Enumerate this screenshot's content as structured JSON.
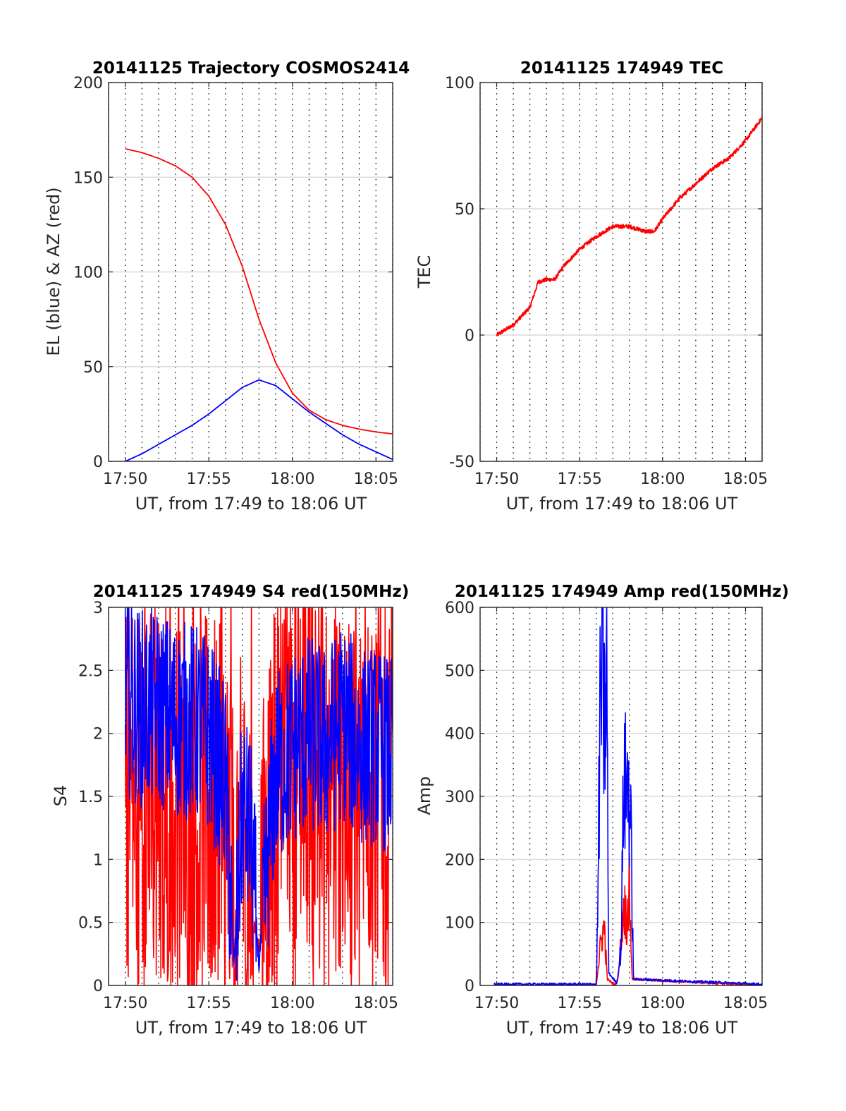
{
  "chart_data": [
    {
      "id": "trajectory",
      "type": "line",
      "title": "20141125 Trajectory COSMOS2414",
      "xlabel": "UT, from 17:49 to 18:06 UT",
      "ylabel": "EL (blue) & AZ (red)",
      "xlim": [
        "17:49",
        "18:06"
      ],
      "xticks": [
        "17:50",
        "17:55",
        "18:00",
        "18:05"
      ],
      "ylim": [
        0,
        200
      ],
      "yticks": [
        "0",
        "50",
        "100",
        "150",
        "200"
      ],
      "grid": true,
      "series": [
        {
          "color": "#ff0000",
          "x": [
            "17:50",
            "17:51",
            "17:52",
            "17:53",
            "17:54",
            "17:55",
            "17:56",
            "17:57",
            "17:58",
            "17:59",
            "18:00",
            "18:01",
            "18:02",
            "18:03",
            "18:04",
            "18:05",
            "18:06"
          ],
          "y": [
            165,
            163,
            160,
            156,
            150,
            140,
            125,
            103,
            75,
            52,
            36,
            27,
            22,
            19,
            17,
            15.5,
            14.5
          ]
        },
        {
          "color": "#0000ff",
          "x": [
            "17:50",
            "17:51",
            "17:52",
            "17:53",
            "17:54",
            "17:55",
            "17:56",
            "17:57",
            "17:58",
            "17:59",
            "18:00",
            "18:01",
            "18:02",
            "18:03",
            "18:04",
            "18:05",
            "18:06"
          ],
          "y": [
            0,
            4,
            9,
            14,
            19,
            25,
            32,
            39,
            43,
            40,
            33,
            26,
            20,
            14,
            9,
            5,
            1
          ]
        }
      ]
    },
    {
      "id": "tec",
      "type": "line",
      "title": "20141125 174949 TEC",
      "xlabel": "UT, from 17:49 to 18:06 UT",
      "ylabel": "TEC",
      "xlim": [
        "17:49",
        "18:06"
      ],
      "xticks": [
        "17:50",
        "17:55",
        "18:00",
        "18:05"
      ],
      "ylim": [
        -50,
        100
      ],
      "yticks": [
        "-50",
        "0",
        "50",
        "100"
      ],
      "grid": true,
      "series": [
        {
          "color": "#ff0000",
          "x": [
            "17:50",
            "17:51",
            "17:52",
            "17:52:30",
            "17:53",
            "17:53:30",
            "17:54",
            "17:55",
            "17:56",
            "17:57",
            "17:58",
            "17:59",
            "17:59:30",
            "18:00",
            "18:01",
            "18:02",
            "18:03",
            "18:04",
            "18:05",
            "18:06"
          ],
          "y": [
            0,
            4,
            11,
            21,
            22,
            22,
            27,
            34,
            39,
            43,
            43,
            41,
            41,
            46,
            54,
            60,
            66,
            70,
            77,
            86
          ]
        }
      ]
    },
    {
      "id": "s4",
      "type": "line",
      "title": "20141125 174949 S4 red(150MHz)",
      "xlabel": "UT, from 17:49 to 18:06 UT",
      "ylabel": "S4",
      "xlim": [
        "17:49",
        "18:06"
      ],
      "xticks": [
        "17:50",
        "17:55",
        "18:00",
        "18:05"
      ],
      "ylim": [
        0,
        3
      ],
      "yticks": [
        "0",
        "0.5",
        "1",
        "1.5",
        "2",
        "2.5",
        "3"
      ],
      "grid": true,
      "series": [
        {
          "color": "#ff0000",
          "x": [
            "17:50",
            "17:51",
            "17:52",
            "17:53",
            "17:54",
            "17:55",
            "17:56",
            "17:56:30",
            "17:57",
            "17:57:30",
            "17:58",
            "17:58:30",
            "17:59",
            "18:00",
            "18:01",
            "18:02",
            "18:03",
            "18:04",
            "18:05",
            "18:06"
          ],
          "y": [
            1.6,
            1.5,
            1.4,
            1.5,
            1.3,
            1.4,
            1.2,
            0.7,
            1.1,
            0.6,
            0.3,
            1.1,
            1.8,
            1.9,
            1.8,
            1.6,
            1.7,
            1.5,
            1.6,
            1.4
          ]
        },
        {
          "color": "#0000ff",
          "x": [
            "17:50",
            "17:51",
            "17:52",
            "17:53",
            "17:54",
            "17:55",
            "17:56",
            "17:56:30",
            "17:57",
            "17:57:30",
            "17:58",
            "17:58:30",
            "17:59",
            "18:00",
            "18:01",
            "18:02",
            "18:03",
            "18:04",
            "18:05",
            "18:06"
          ],
          "y": [
            2.3,
            2.2,
            2.2,
            2.1,
            2.1,
            2.0,
            1.6,
            0.15,
            1.4,
            1.2,
            0.15,
            1.0,
            1.7,
            1.9,
            2.0,
            1.9,
            2.1,
            1.9,
            1.9,
            1.8
          ]
        }
      ]
    },
    {
      "id": "amp",
      "type": "line",
      "title": "20141125 174949 Amp red(150MHz)",
      "xlabel": "UT, from 17:49 to 18:06 UT",
      "ylabel": "Amp",
      "xlim": [
        "17:49",
        "18:06"
      ],
      "xticks": [
        "17:50",
        "17:55",
        "18:00",
        "18:05"
      ],
      "ylim": [
        0,
        600
      ],
      "yticks": [
        "0",
        "100",
        "200",
        "300",
        "400",
        "500",
        "600"
      ],
      "grid": true,
      "series": [
        {
          "color": "#ff0000",
          "x": [
            "17:50",
            "17:56",
            "17:56:10",
            "17:56:20",
            "17:56:30",
            "17:56:40",
            "17:57:10",
            "17:57:20",
            "17:57:40",
            "17:57:50",
            "17:58",
            "17:58:10",
            "18:06"
          ],
          "y": [
            0,
            0,
            40,
            80,
            90,
            10,
            0,
            15,
            130,
            100,
            150,
            10,
            0
          ]
        },
        {
          "color": "#0000ff",
          "x": [
            "17:49:50",
            "17:56",
            "17:56:05",
            "17:56:15",
            "17:56:22",
            "17:56:30",
            "17:56:38",
            "17:56:45",
            "17:57:15",
            "17:57:30",
            "17:57:40",
            "17:57:48",
            "17:57:55",
            "17:58:05",
            "17:58:15",
            "18:06"
          ],
          "y": [
            2,
            2,
            100,
            460,
            490,
            400,
            505,
            20,
            3,
            60,
            345,
            300,
            330,
            250,
            10,
            2
          ]
        }
      ]
    }
  ]
}
